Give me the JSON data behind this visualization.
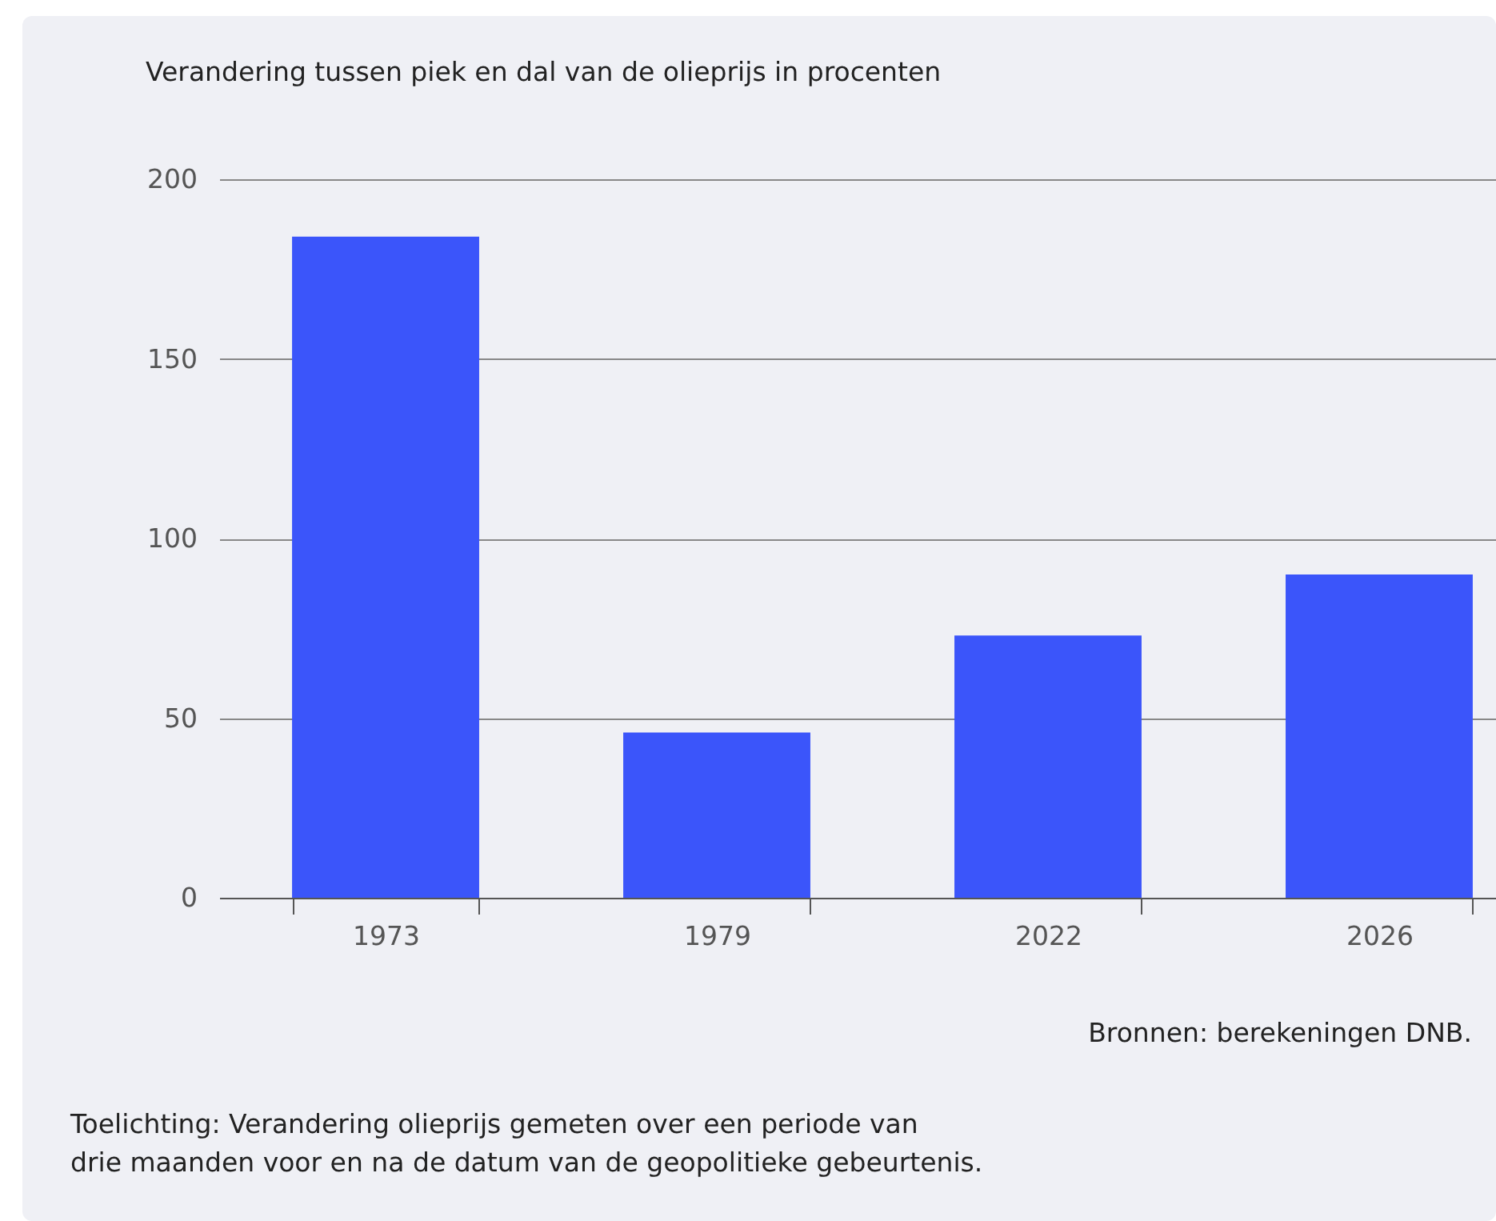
{
  "chart_data": {
    "type": "bar",
    "title": "Verandering tussen piek en dal van de olieprijs in procenten",
    "categories": [
      "1973",
      "1979",
      "2022",
      "2026"
    ],
    "values": [
      184,
      46,
      73,
      90
    ],
    "color": "#3b55fa",
    "ylim": [
      0,
      200
    ],
    "yticks": [
      0,
      50,
      100,
      150,
      200
    ],
    "grid": "y",
    "annotations": [
      "Bronnen: berekeningen DNB.",
      "Toelichting: Verandering olieprijs gemeten over een periode van\ndrie maanden voor en na de datum van de geopolitieke gebeurtenis."
    ]
  }
}
